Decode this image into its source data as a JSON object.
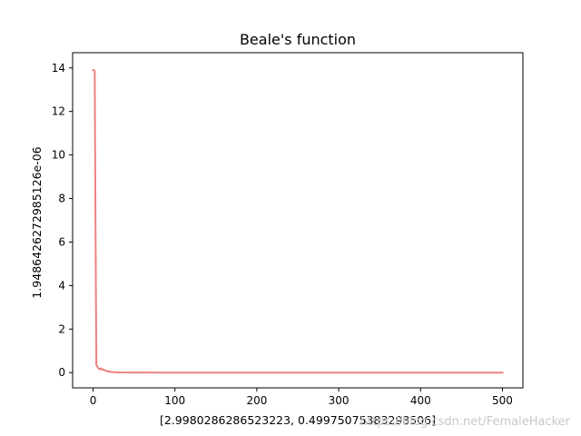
{
  "watermark": "https://blog.csdn.net/FemaleHacker",
  "chart_data": {
    "type": "line",
    "title": "Beale's function",
    "xlabel": "[2.9980286286523223, 0.49975075383298506]",
    "ylabel": "1.9486426272985126e-06",
    "xlim": [
      -25,
      525
    ],
    "ylim": [
      -0.7,
      14.7
    ],
    "xticks": [
      0,
      100,
      200,
      300,
      400,
      500
    ],
    "yticks": [
      0,
      2,
      4,
      6,
      8,
      10,
      12,
      14
    ],
    "grid": false,
    "legend": null,
    "series": [
      {
        "color": "#f08080",
        "x": [
          0,
          1,
          2,
          3,
          4,
          5,
          6,
          7,
          8,
          9,
          10,
          11,
          12,
          13,
          14,
          15,
          16,
          17,
          18,
          19,
          20,
          21,
          22,
          23,
          25,
          30,
          40,
          60,
          100,
          200,
          300,
          400,
          500
        ],
        "y": [
          13.9,
          13.9,
          13.85,
          6.5,
          0.35,
          0.3,
          0.22,
          0.18,
          0.16,
          0.15,
          0.2,
          0.15,
          0.14,
          0.13,
          0.12,
          0.1,
          0.08,
          0.07,
          0.06,
          0.05,
          0.05,
          0.04,
          0.03,
          0.03,
          0.02,
          0.01,
          0.005,
          0.002,
          0.001,
          0.0005,
          0.0002,
          0.0001,
          1e-05
        ]
      }
    ]
  }
}
